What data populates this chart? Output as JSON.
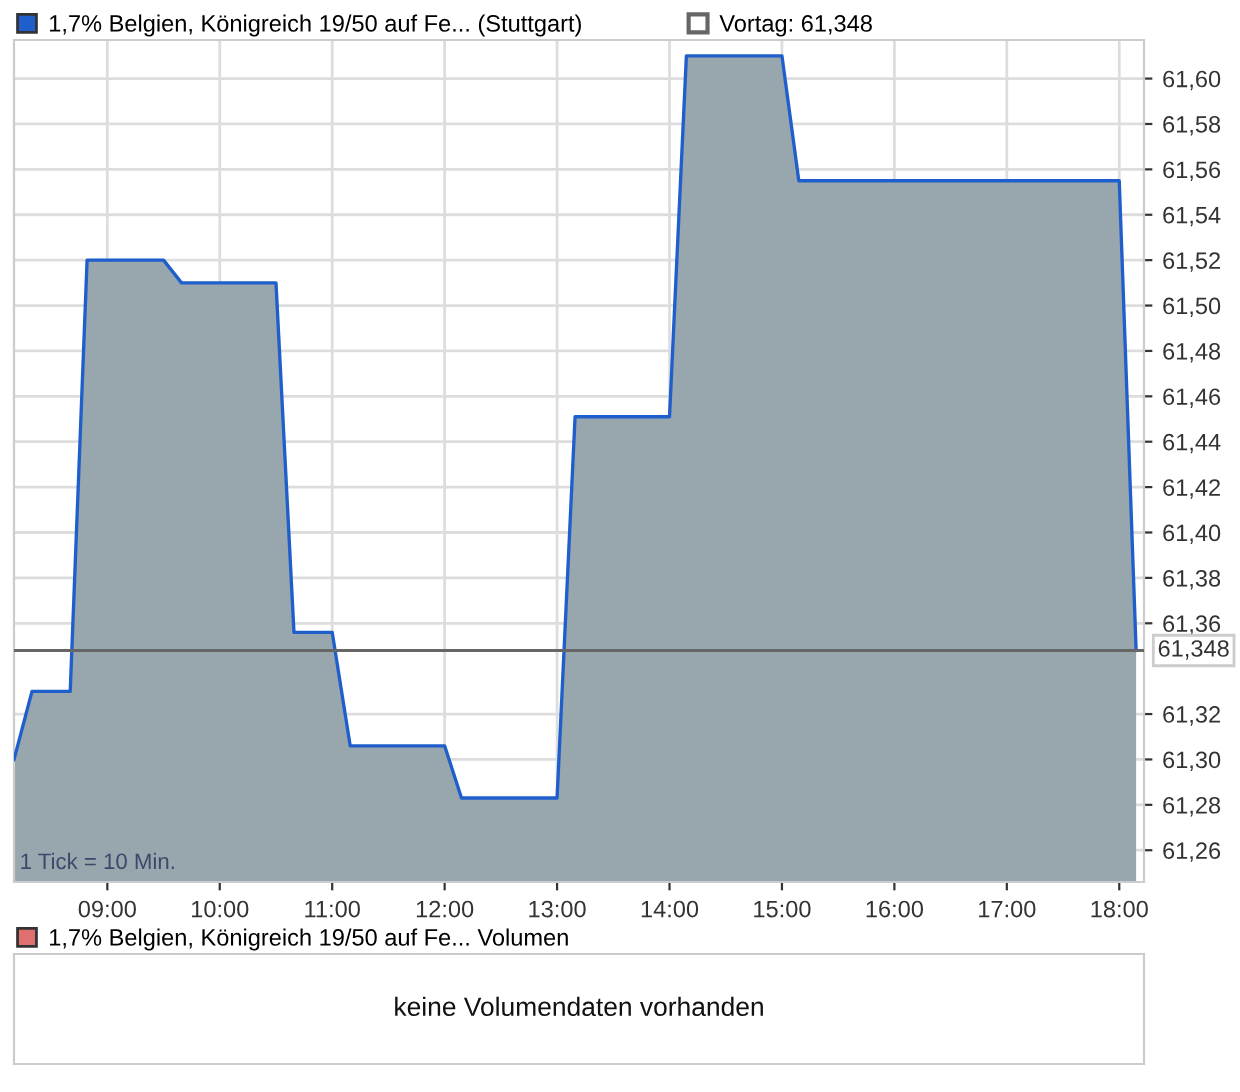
{
  "chart_data": [
    {
      "type": "area",
      "x": [
        8.17,
        8.33,
        8.67,
        8.82,
        9.5,
        9.66,
        10.5,
        10.66,
        11.0,
        11.16,
        12.0,
        12.15,
        13.0,
        13.16,
        14.0,
        14.15,
        15.0,
        15.15,
        18.0,
        18.15
      ],
      "series": [
        {
          "name": "1,7% Belgien, Königreich 19/50 auf Fe... (Stuttgart)",
          "color": "#1f5fcc",
          "values": [
            61.3,
            61.33,
            61.33,
            61.52,
            61.52,
            61.51,
            61.51,
            61.356,
            61.356,
            61.306,
            61.306,
            61.283,
            61.283,
            61.451,
            61.451,
            61.61,
            61.61,
            61.555,
            61.555,
            61.348
          ]
        }
      ],
      "xlim": [
        8.17,
        18.22
      ],
      "xticks": [
        {
          "value": 9,
          "label": "09:00"
        },
        {
          "value": 10,
          "label": "10:00"
        },
        {
          "value": 11,
          "label": "11:00"
        },
        {
          "value": 12,
          "label": "12:00"
        },
        {
          "value": 13,
          "label": "13:00"
        },
        {
          "value": 14,
          "label": "14:00"
        },
        {
          "value": 15,
          "label": "15:00"
        },
        {
          "value": 16,
          "label": "16:00"
        },
        {
          "value": 17,
          "label": "17:00"
        },
        {
          "value": 18,
          "label": "18:00"
        }
      ],
      "ylim": [
        61.246,
        61.617
      ],
      "yticks": [
        {
          "value": 61.26,
          "label": "61,26"
        },
        {
          "value": 61.28,
          "label": "61,28"
        },
        {
          "value": 61.3,
          "label": "61,30"
        },
        {
          "value": 61.32,
          "label": "61,32"
        },
        {
          "value": 61.36,
          "label": "61,36"
        },
        {
          "value": 61.38,
          "label": "61,38"
        },
        {
          "value": 61.4,
          "label": "61,40"
        },
        {
          "value": 61.42,
          "label": "61,42"
        },
        {
          "value": 61.44,
          "label": "61,44"
        },
        {
          "value": 61.46,
          "label": "61,46"
        },
        {
          "value": 61.48,
          "label": "61,48"
        },
        {
          "value": 61.5,
          "label": "61,50"
        },
        {
          "value": 61.52,
          "label": "61,52"
        },
        {
          "value": 61.54,
          "label": "61,54"
        },
        {
          "value": 61.56,
          "label": "61,56"
        },
        {
          "value": 61.58,
          "label": "61,58"
        },
        {
          "value": 61.6,
          "label": "61,60"
        }
      ],
      "ref_lines": [
        {
          "axis": "y",
          "value": 61.348,
          "label": "Vortag: 61,348",
          "color": "#666666"
        }
      ],
      "annotations": [
        "1 Tick = 10 Min.",
        "61,348"
      ],
      "grid": true,
      "legend": "top left"
    },
    {
      "type": "other",
      "series": [
        {
          "name": "1,7% Belgien, Königreich 19/50 auf Fe... Volumen",
          "color": "#e07070"
        }
      ],
      "annotations": [
        "keine Volumendaten vorhanden"
      ],
      "legend": "top left"
    }
  ]
}
